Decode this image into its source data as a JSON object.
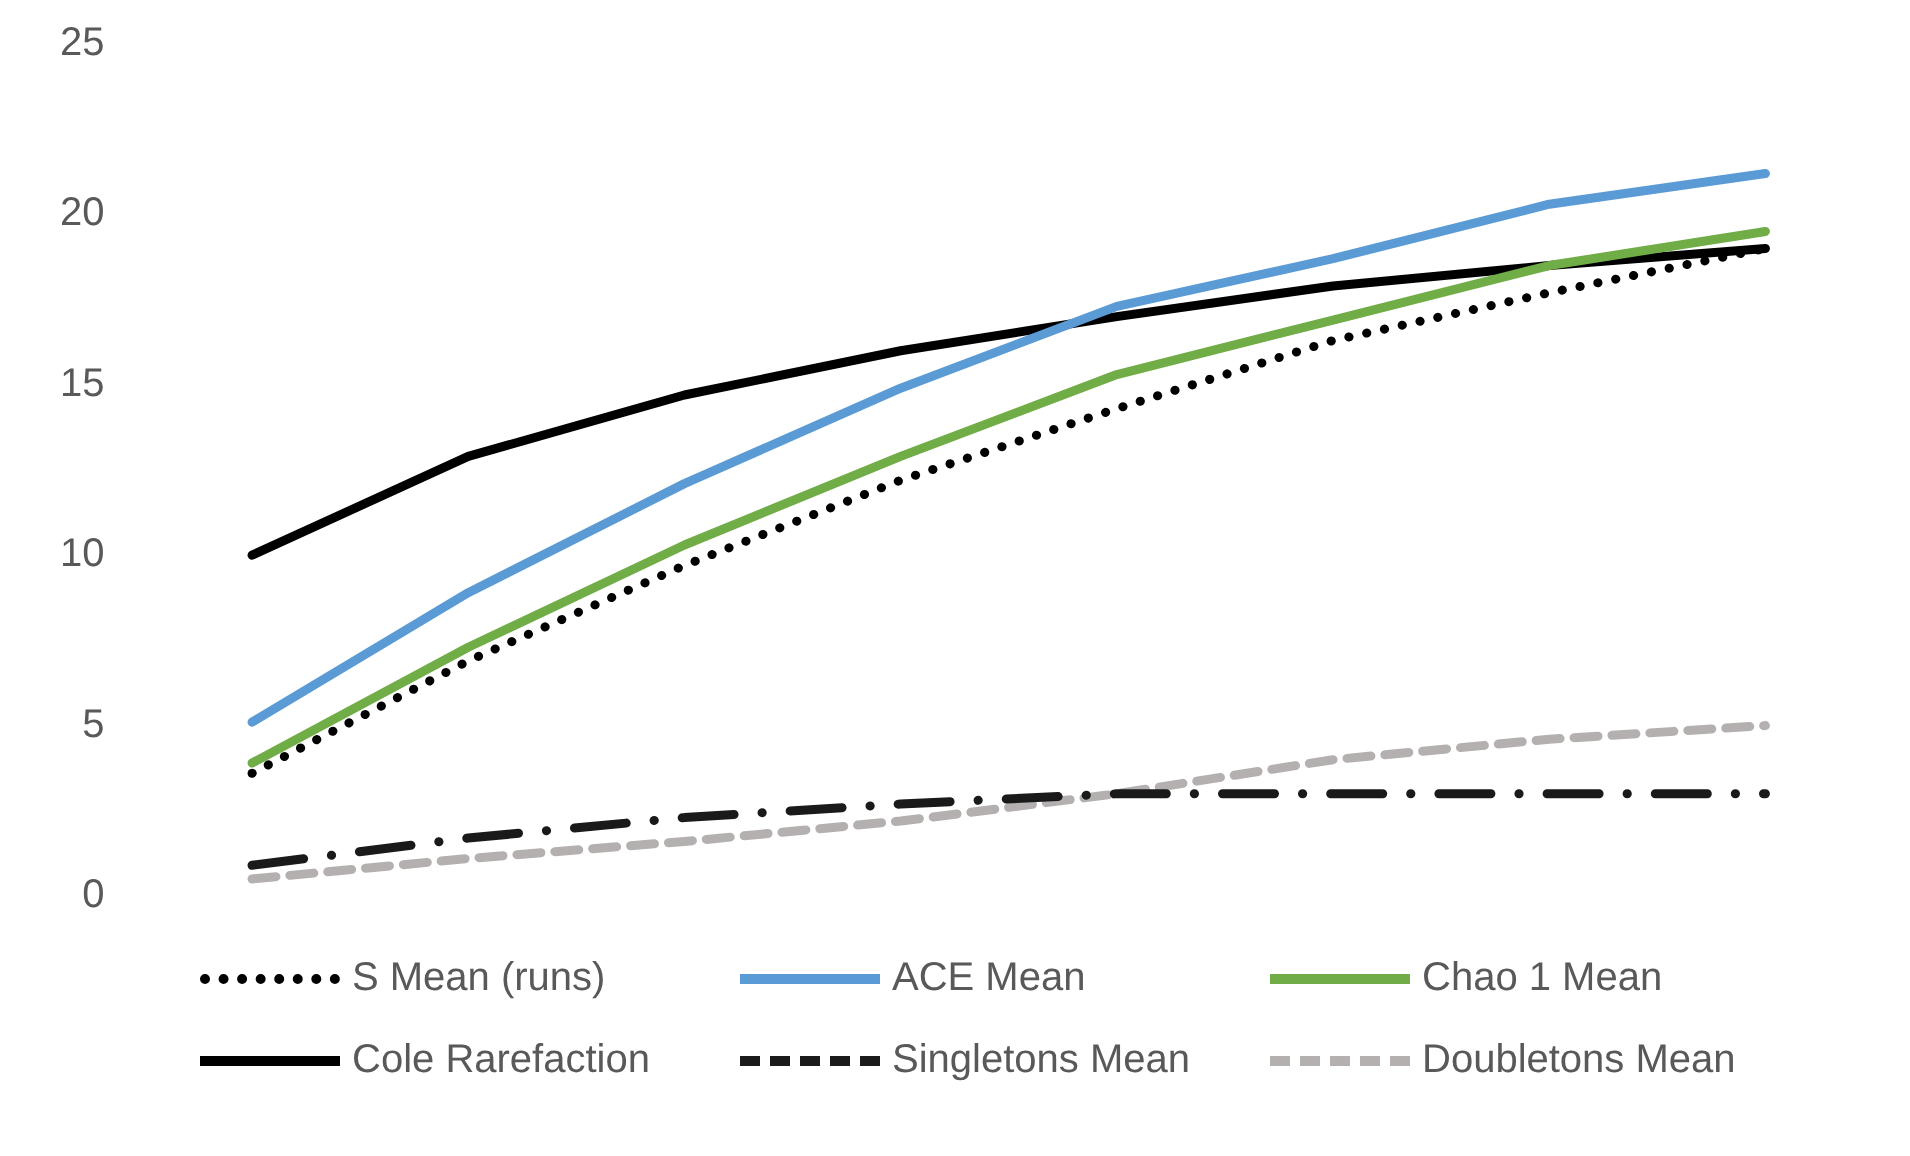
{
  "chart_data": {
    "type": "line",
    "categories": [
      null,
      null,
      null,
      null,
      null,
      null,
      null,
      null
    ],
    "series": [
      {
        "name": "S Mean (runs)",
        "color": "#000000",
        "line_style": "dotted",
        "values": [
          3.6,
          6.9,
          9.7,
          12.2,
          14.3,
          16.3,
          17.7,
          19.0
        ]
      },
      {
        "name": "ACE Mean",
        "color": "#5b9bd5",
        "line_style": "solid",
        "values": [
          5.1,
          8.9,
          12.1,
          14.9,
          17.3,
          18.7,
          20.3,
          21.2
        ]
      },
      {
        "name": "Chao 1 Mean",
        "color": "#70ad47",
        "line_style": "solid",
        "values": [
          3.9,
          7.3,
          10.3,
          12.9,
          15.3,
          16.9,
          18.5,
          19.5
        ]
      },
      {
        "name": "Cole Rarefaction",
        "color": "#000000",
        "line_style": "solid",
        "values": [
          10.0,
          12.9,
          14.7,
          16.0,
          17.0,
          17.9,
          18.5,
          19.0
        ]
      },
      {
        "name": "Singletons Mean",
        "color": "#1a1a1a",
        "line_style": "dashdot",
        "values": [
          0.9,
          1.7,
          2.3,
          2.7,
          3.0,
          3.0,
          3.0,
          3.0
        ]
      },
      {
        "name": "Doubletons Mean",
        "color": "#b4b0b0",
        "line_style": "dashed",
        "values": [
          0.5,
          1.1,
          1.6,
          2.2,
          3.0,
          4.0,
          4.6,
          5.0
        ]
      }
    ],
    "ylim": [
      0,
      25
    ],
    "yticks": [
      0,
      5,
      10,
      15,
      20,
      25
    ],
    "grid": false,
    "legend": "bottom",
    "tick_labels": "y",
    "marker": "none"
  }
}
